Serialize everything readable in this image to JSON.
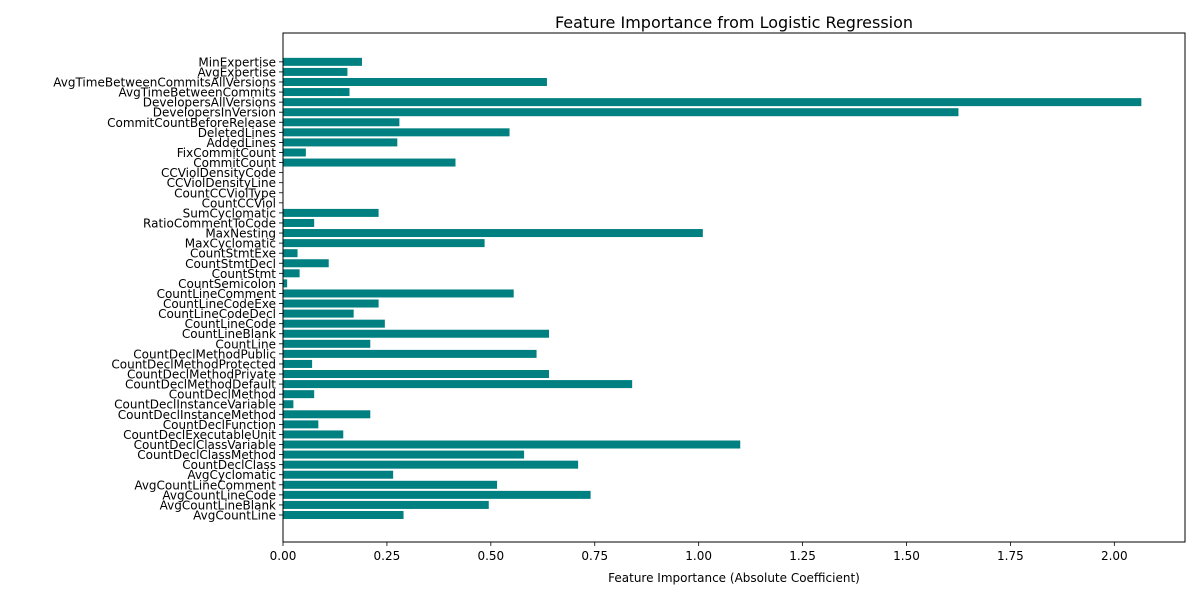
{
  "chart_data": {
    "type": "bar",
    "orientation": "horizontal",
    "title": "Feature Importance from Logistic Regression",
    "xlabel": "Feature Importance (Absolute Coefficient)",
    "ylabel": "",
    "xlim": [
      0,
      2.17
    ],
    "xticks": [
      "0.00",
      "0.25",
      "0.50",
      "0.75",
      "1.00",
      "1.25",
      "1.50",
      "1.75",
      "2.00"
    ],
    "grid": false,
    "bar_color": "#008080",
    "categories": [
      "AvgCountLine",
      "AvgCountLineBlank",
      "AvgCountLineCode",
      "AvgCountLineComment",
      "AvgCyclomatic",
      "CountDeclClass",
      "CountDeclClassMethod",
      "CountDeclClassVariable",
      "CountDeclExecutableUnit",
      "CountDeclFunction",
      "CountDeclInstanceMethod",
      "CountDeclInstanceVariable",
      "CountDeclMethod",
      "CountDeclMethodDefault",
      "CountDeclMethodPrivate",
      "CountDeclMethodProtected",
      "CountDeclMethodPublic",
      "CountLine",
      "CountLineBlank",
      "CountLineCode",
      "CountLineCodeDecl",
      "CountLineCodeExe",
      "CountLineComment",
      "CountSemicolon",
      "CountStmt",
      "CountStmtDecl",
      "CountStmtExe",
      "MaxCyclomatic",
      "MaxNesting",
      "RatioCommentToCode",
      "SumCyclomatic",
      "CountCCViol",
      "CountCCViolType",
      "CCViolDensityLine",
      "CCViolDensityCode",
      "CommitCount",
      "FixCommitCount",
      "AddedLines",
      "DeletedLines",
      "CommitCountBeforeRelease",
      "DevelopersInVersion",
      "DevelopersAllVersions",
      "AvgTimeBetweenCommits",
      "AvgTimeBetweenCommitsAllVersions",
      "AvgExpertise",
      "MinExpertise"
    ],
    "values": [
      0.29,
      0.495,
      0.74,
      0.515,
      0.265,
      0.71,
      0.58,
      1.1,
      0.145,
      0.085,
      0.21,
      0.025,
      0.075,
      0.84,
      0.64,
      0.07,
      0.61,
      0.21,
      0.64,
      0.245,
      0.17,
      0.23,
      0.555,
      0.01,
      0.04,
      0.11,
      0.035,
      0.485,
      1.01,
      0.075,
      0.23,
      0.0,
      0.0,
      0.0,
      0.0,
      0.415,
      0.055,
      0.275,
      0.545,
      0.28,
      1.625,
      2.065,
      0.16,
      0.635,
      0.155,
      0.19
    ]
  }
}
